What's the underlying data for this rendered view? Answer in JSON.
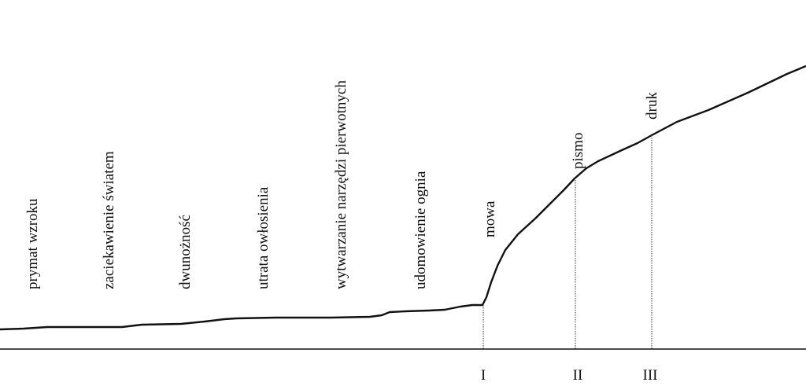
{
  "diagram": {
    "stages": [
      {
        "id": "s1",
        "label": "prymat wzroku"
      },
      {
        "id": "s2",
        "label": "zaciekawienie światem"
      },
      {
        "id": "s3",
        "label": "dwunożność"
      },
      {
        "id": "s4",
        "label": "utrata owłosienia"
      },
      {
        "id": "s5",
        "label": "wytwarzanie narzędzi pierwotnych"
      },
      {
        "id": "s6",
        "label": "udomowienie ognia"
      },
      {
        "id": "s7",
        "label": "mowa"
      },
      {
        "id": "s8",
        "label": "pismo"
      },
      {
        "id": "s9",
        "label": "druk"
      }
    ],
    "markers": [
      {
        "id": "m1",
        "label": "I"
      },
      {
        "id": "m2",
        "label": "II"
      },
      {
        "id": "m3",
        "label": "III"
      }
    ]
  }
}
